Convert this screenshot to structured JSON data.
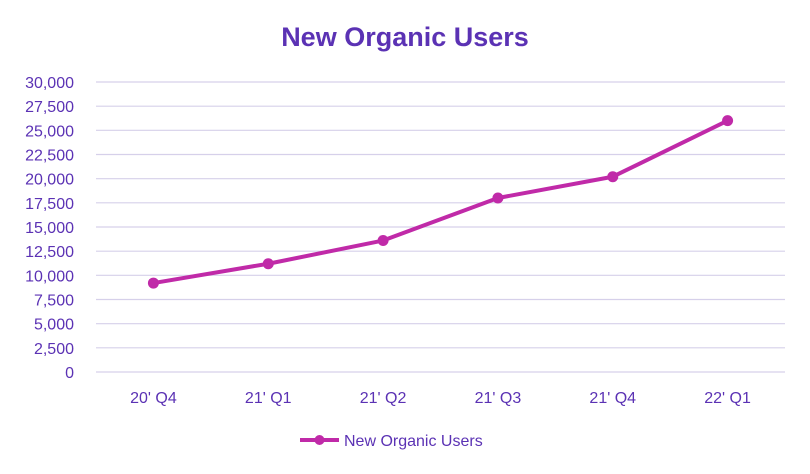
{
  "chart_data": {
    "type": "line",
    "title": "New Organic Users",
    "xlabel": "",
    "ylabel": "",
    "categories": [
      "20' Q4",
      "21' Q1",
      "21' Q2",
      "21' Q3",
      "21' Q4",
      "22' Q1"
    ],
    "series": [
      {
        "name": "New Organic Users",
        "values": [
          9200,
          11200,
          13600,
          18000,
          20200,
          26000
        ]
      }
    ],
    "ylim": [
      0,
      30000
    ],
    "y_ticks": [
      "0",
      "2,500",
      "5,000",
      "7,500",
      "10,000",
      "12,500",
      "15,000",
      "17,500",
      "20,000",
      "22,500",
      "25,000",
      "27,500",
      "30,000"
    ],
    "grid": true,
    "legend_position": "bottom",
    "colors": {
      "title": "#5b32b4",
      "axis_text": "#5b32b4",
      "series": "#c02aa8",
      "grid": "#d6d0ea"
    }
  }
}
